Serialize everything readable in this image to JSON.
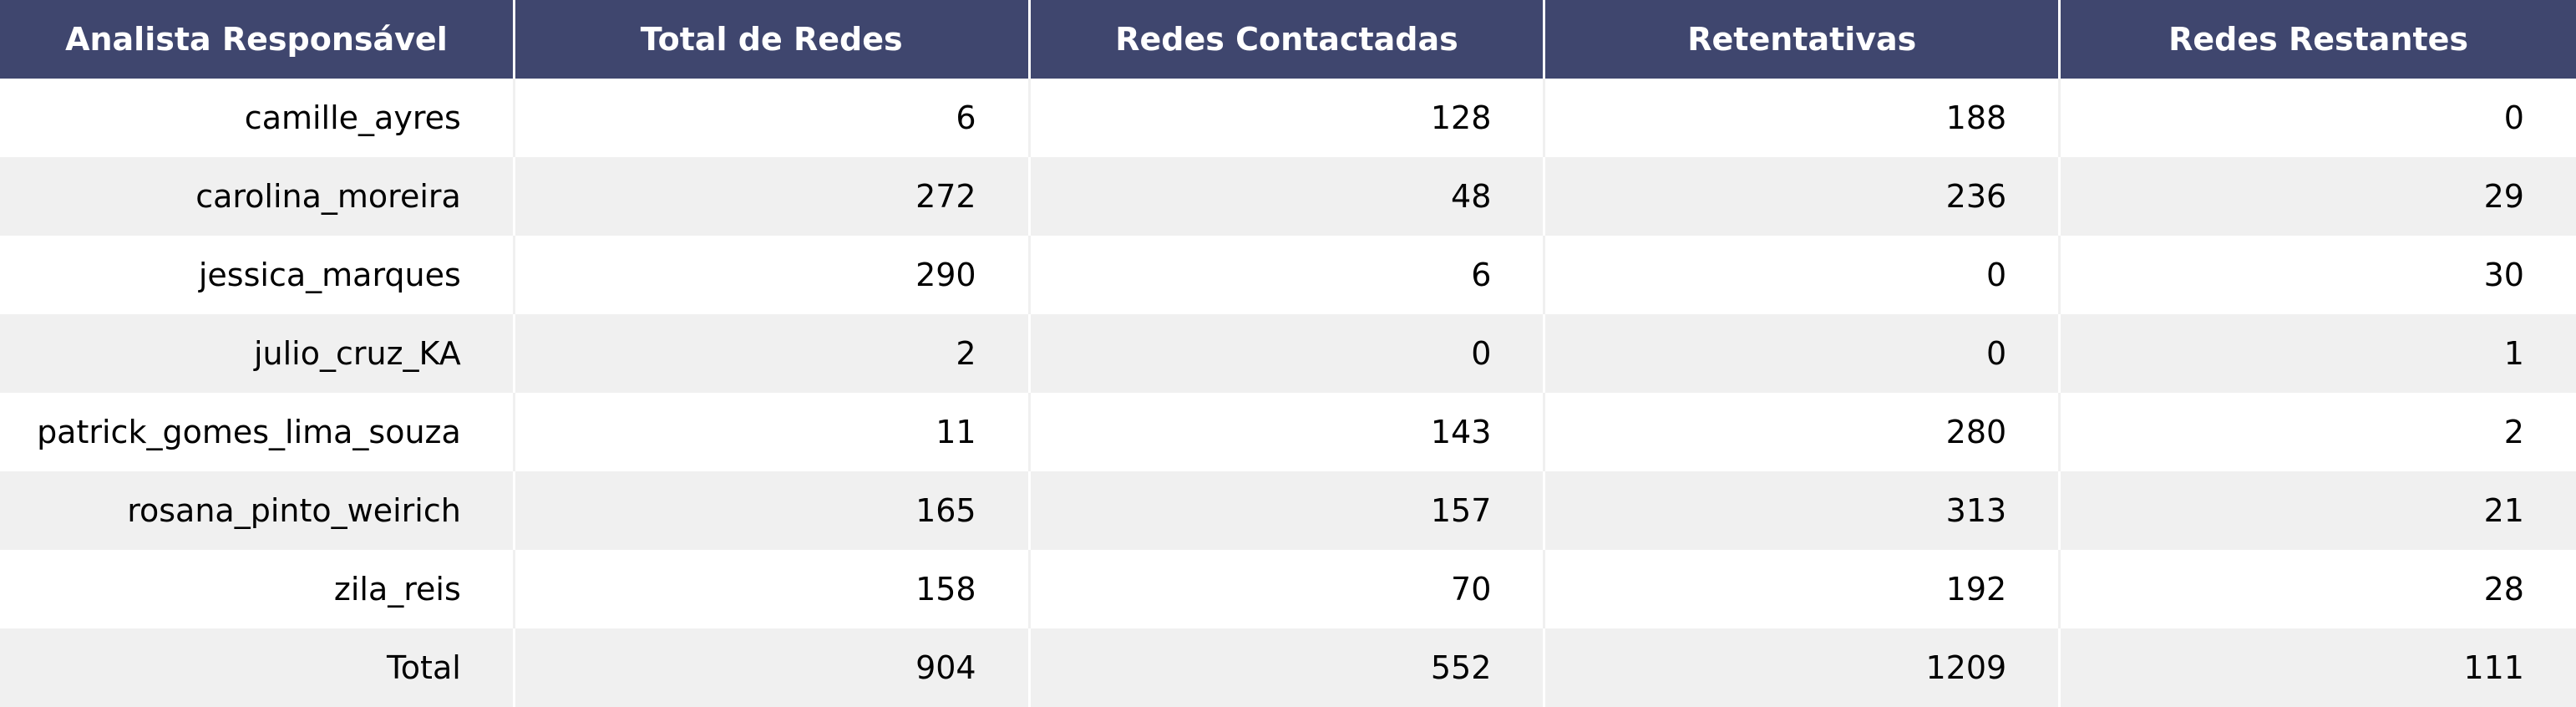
{
  "chart_data": {
    "type": "table",
    "columns": [
      "Analista Responsável",
      "Total de Redes",
      "Redes Contactadas",
      "Retentativas",
      "Redes Restantes"
    ],
    "rows": [
      [
        "camille_ayres",
        "6",
        "128",
        "188",
        "0"
      ],
      [
        "carolina_moreira",
        "272",
        "48",
        "236",
        "29"
      ],
      [
        "jessica_marques",
        "290",
        "6",
        "0",
        "30"
      ],
      [
        "julio_cruz_KA",
        "2",
        "0",
        "0",
        "1"
      ],
      [
        "patrick_gomes_lima_souza",
        "11",
        "143",
        "280",
        "2"
      ],
      [
        "rosana_pinto_weirich",
        "165",
        "157",
        "313",
        "21"
      ],
      [
        "zila_reis",
        "158",
        "70",
        "192",
        "28"
      ],
      [
        "Total",
        "904",
        "552",
        "1209",
        "111"
      ]
    ]
  },
  "colors": {
    "header_background": "#3f466e",
    "header_text": "#ffffff",
    "row_alt_background": "#f0f0f0",
    "row_background": "#ffffff"
  }
}
